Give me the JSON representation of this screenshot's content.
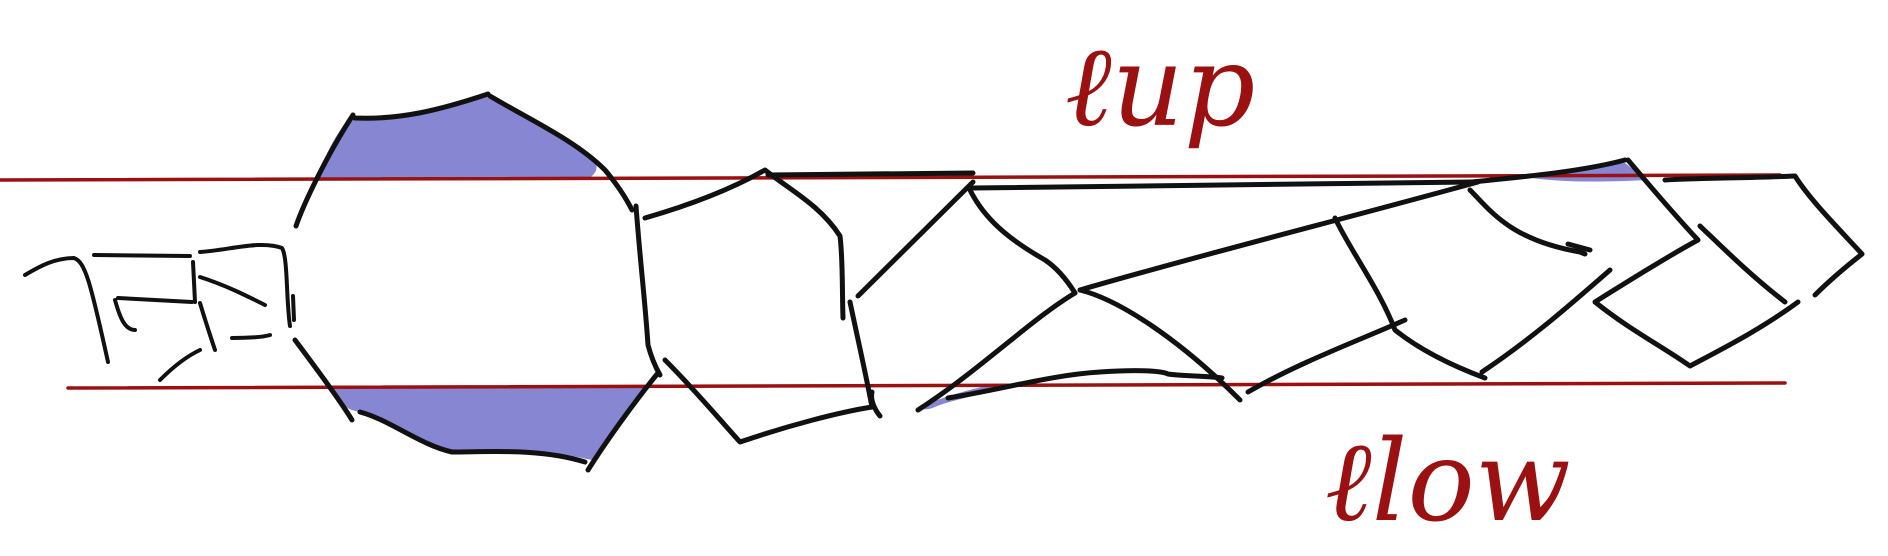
{
  "labels": {
    "upper_line": "ℓup",
    "lower_line": "ℓlow"
  },
  "colors": {
    "ink": "#111111",
    "line_red": "#9b1010",
    "fill_blue": "#7f7fd0"
  }
}
